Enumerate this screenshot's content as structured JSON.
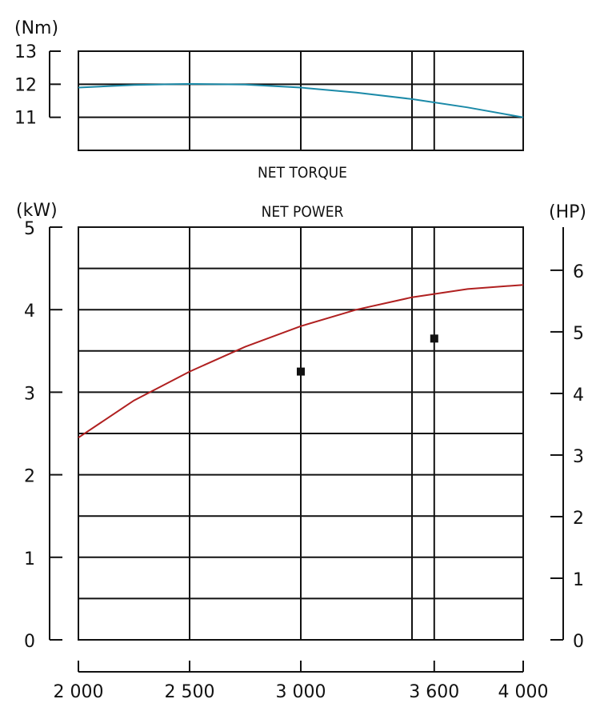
{
  "chart_data": [
    {
      "type": "line",
      "title": "NET TORQUE",
      "ylabel": "(Nm)",
      "xlim": [
        2000,
        4000
      ],
      "ylim": [
        10,
        13
      ],
      "y_ticks": [
        "13",
        "12",
        "11"
      ],
      "x_gridlines": [
        2500,
        3000,
        3500,
        3600
      ],
      "grid": true,
      "series": [
        {
          "color": "#1b8aa8",
          "x": [
            2000,
            2250,
            2500,
            2750,
            3000,
            3250,
            3500,
            3750,
            4000
          ],
          "y": [
            11.9,
            11.98,
            12.01,
            11.99,
            11.9,
            11.75,
            11.55,
            11.3,
            11.0
          ]
        }
      ]
    },
    {
      "type": "line",
      "title": "NET POWER",
      "ylabel": "(kW)",
      "y2label": "(HP)",
      "xlim": [
        2000,
        4000
      ],
      "ylim": [
        0,
        5
      ],
      "y2lim": [
        0,
        6.7
      ],
      "y_ticks": [
        "0",
        "1",
        "2",
        "3",
        "4",
        "5"
      ],
      "y2_ticks": [
        "0",
        "1",
        "2",
        "3",
        "4",
        "5",
        "6"
      ],
      "x_ticks": [
        "2 000",
        "2 500",
        "3 000",
        "3 600",
        "4 000"
      ],
      "x_tick_values": [
        2000,
        2500,
        3000,
        3600,
        4000
      ],
      "x_gridlines": [
        2500,
        3000,
        3500,
        3600
      ],
      "grid": true,
      "series": [
        {
          "color": "#b02020",
          "x": [
            2000,
            2250,
            2500,
            2750,
            3000,
            3250,
            3500,
            3750,
            4000
          ],
          "y": [
            2.45,
            2.9,
            3.25,
            3.55,
            3.8,
            4.0,
            4.15,
            4.25,
            4.3
          ]
        }
      ],
      "markers": [
        {
          "x": 3000,
          "y": 3.25
        },
        {
          "x": 3600,
          "y": 3.65
        }
      ]
    }
  ]
}
